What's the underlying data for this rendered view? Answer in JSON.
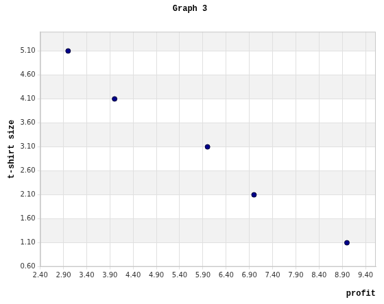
{
  "chart_data": {
    "type": "scatter",
    "title": "Graph 3",
    "x_label": "profit",
    "y_label": "t-shirt size",
    "x": [
      3.0,
      4.0,
      6.0,
      7.0,
      9.0
    ],
    "values": [
      5.1,
      4.1,
      3.1,
      2.1,
      1.1
    ],
    "color": "#00008b",
    "xlim": [
      2.4,
      9.62
    ],
    "xticks": [
      {
        "value": 2.4,
        "label": "2.40"
      },
      {
        "value": 2.9,
        "label": "2.90"
      },
      {
        "value": 3.4,
        "label": "3.40"
      },
      {
        "value": 3.9,
        "label": "3.90"
      },
      {
        "value": 4.4,
        "label": "4.40"
      },
      {
        "value": 4.9,
        "label": "4.90"
      },
      {
        "value": 5.4,
        "label": "5.40"
      },
      {
        "value": 5.9,
        "label": "5.90"
      },
      {
        "value": 6.4,
        "label": "6.40"
      },
      {
        "value": 6.9,
        "label": "6.90"
      },
      {
        "value": 7.4,
        "label": "7.40"
      },
      {
        "value": 7.9,
        "label": "7.90"
      },
      {
        "value": 8.4,
        "label": "8.40"
      },
      {
        "value": 8.9,
        "label": "8.90"
      },
      {
        "value": 9.4,
        "label": "9.40"
      }
    ],
    "ylim": [
      0.6,
      5.5
    ],
    "yticks": [
      {
        "value": 0.6,
        "label": "0.60"
      },
      {
        "value": 1.1,
        "label": "1.10"
      },
      {
        "value": 1.6,
        "label": "1.60"
      },
      {
        "value": 2.1,
        "label": "2.10"
      },
      {
        "value": 2.6,
        "label": "2.60"
      },
      {
        "value": 3.1,
        "label": "3.10"
      },
      {
        "value": 3.6,
        "label": "3.60"
      },
      {
        "value": 4.1,
        "label": "4.10"
      },
      {
        "value": 4.6,
        "label": "4.60"
      },
      {
        "value": 5.1,
        "label": "5.10"
      }
    ],
    "grid": true
  }
}
